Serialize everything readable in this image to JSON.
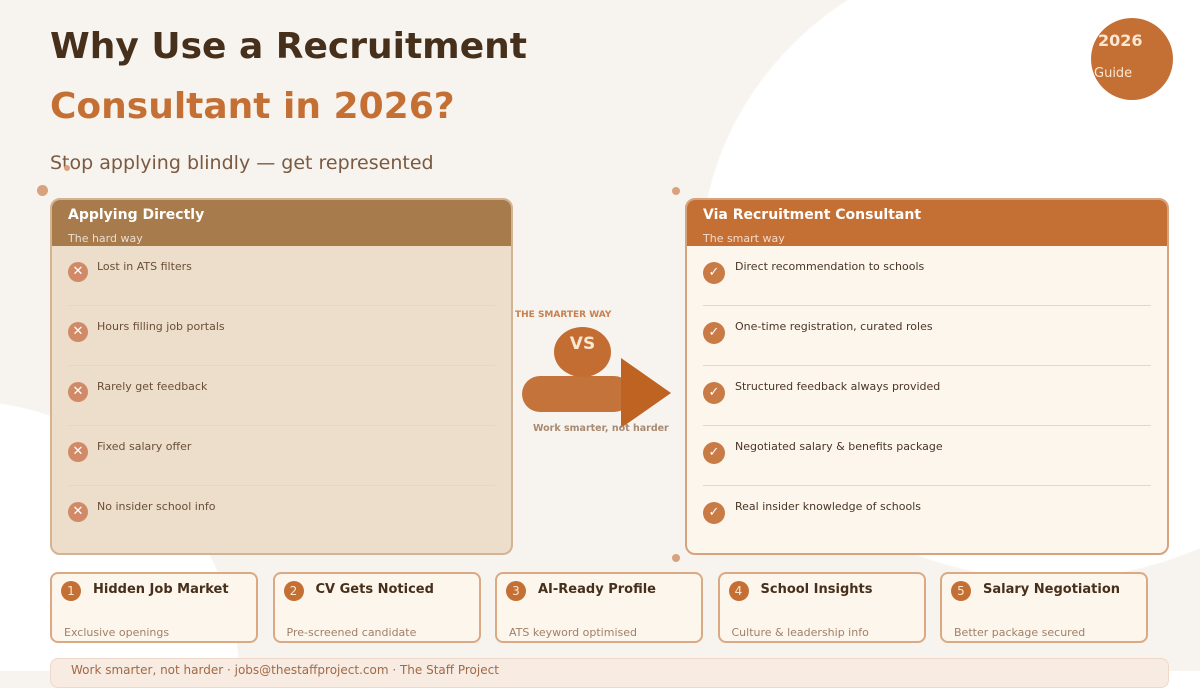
{
  "header": {
    "title_line1": "Why Use a Recruitment",
    "title_line2": "Consultant in 2026?",
    "subtitle": "Stop applying blindly — get represented"
  },
  "badge": {
    "year": "2026",
    "label": "Guide"
  },
  "left_card": {
    "title": "Applying Directly",
    "subtitle": "The hard way",
    "icon": "x-circle-icon",
    "items": [
      "Lost in ATS filters",
      "Hours filling job portals",
      "Rarely get feedback",
      "Fixed salary offer",
      "No insider school info"
    ]
  },
  "right_card": {
    "title": "Via Recruitment Consultant",
    "subtitle": "The smart way",
    "icon": "check-circle-icon",
    "items": [
      "Direct recommendation to schools",
      "One-time registration, curated roles",
      "Structured feedback always provided",
      "Negotiated salary & benefits package",
      "Real insider knowledge of schools"
    ]
  },
  "middle": {
    "top_label": "THE SMARTER WAY",
    "vs": "VS",
    "bottom_label": "Work smarter, not harder"
  },
  "features": [
    {
      "num": "1",
      "title": "Hidden Job Market",
      "desc": "Exclusive openings"
    },
    {
      "num": "2",
      "title": "CV Gets Noticed",
      "desc": "Pre-screened candidate"
    },
    {
      "num": "3",
      "title": "AI-Ready Profile",
      "desc": "ATS keyword optimised"
    },
    {
      "num": "4",
      "title": "School Insights",
      "desc": "Culture & leadership info"
    },
    {
      "num": "5",
      "title": "Salary Negotiation",
      "desc": "Better package secured"
    }
  ],
  "footer": {
    "text": "Work smarter, not harder  ·  jobs@thestaffproject.com  ·  The Staff Project"
  },
  "colors": {
    "accent": "#c47035",
    "dark": "#46301c",
    "left_header": "#a77b4c"
  }
}
